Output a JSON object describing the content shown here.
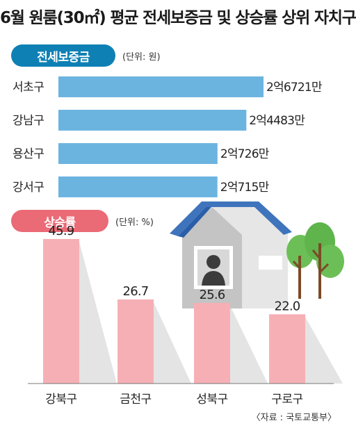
{
  "title": "6월 원룸(30㎡) 평균 전세보증금 및 상승률 상위 자치구",
  "source": "〈자료 : 국토교통부〉",
  "colors": {
    "deposit_pill": "#0f80b4",
    "deposit_bar": "#6cb4e0",
    "rise_pill": "#ea6a76",
    "rise_bar": "#f6b0b5",
    "bar_shadow": "#c9c9c9"
  },
  "illustration": {
    "name": "house-with-trees-illustration"
  },
  "chart_data": [
    {
      "type": "bar",
      "orientation": "horizontal",
      "title": "전세보증금",
      "unit_label": "(단위: 원)",
      "categories": [
        "서초구",
        "강남구",
        "용산구",
        "강서구"
      ],
      "values": [
        267210000,
        244830000,
        207260000,
        207150000
      ],
      "value_labels": [
        "2억6721만",
        "2억4483만",
        "2억726만",
        "2억715만"
      ]
    },
    {
      "type": "bar",
      "orientation": "vertical",
      "title": "상승률",
      "unit_label": "(단위: %)",
      "categories": [
        "강북구",
        "금천구",
        "성북구",
        "구로구"
      ],
      "values": [
        45.9,
        26.7,
        25.6,
        22.0
      ],
      "value_labels": [
        "45.9",
        "26.7",
        "25.6",
        "22.0"
      ]
    }
  ]
}
